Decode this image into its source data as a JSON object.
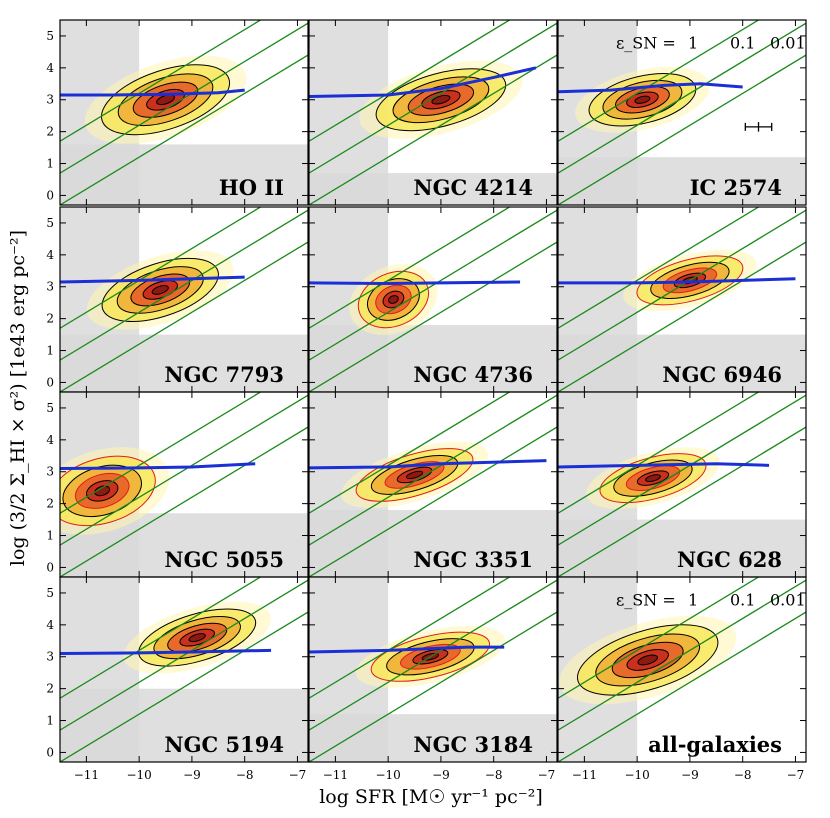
{
  "figure": {
    "ylabel": "log (3/2 Σ_HI × σ²) [1e43 erg pc⁻²]",
    "xlabel": "log SFR [M☉ yr⁻¹ pc⁻²]"
  },
  "chart_data": {
    "type": "contour",
    "layout": {
      "rows": 4,
      "cols": 3
    },
    "xlim": [
      -11.5,
      -6.8
    ],
    "ylim": [
      -0.3,
      5.5
    ],
    "xticks": [
      -11,
      -10,
      -9,
      -8,
      -7
    ],
    "yticks": [
      0,
      1,
      2,
      3,
      4,
      5
    ],
    "xtick_labels": [
      "−11",
      "−10",
      "−9",
      "−8",
      "−7"
    ],
    "ytick_labels": [
      "0",
      "1",
      "2",
      "3",
      "4",
      "5"
    ],
    "diagonal_offsets": [
      11.2,
      12.2,
      13.2
    ],
    "efficiency_label": "ε_SN =",
    "efficiency_values": [
      "1",
      "0.1",
      "0.01"
    ],
    "colors": {
      "threshold_line": "#1a2fd6",
      "efficiency_lines": "#1a8a1a",
      "shade": "#d9d9d9"
    },
    "panels": [
      {
        "name": "HO II",
        "shade_x": -10.0,
        "shade_y": 1.6,
        "threshold": [
          [
            -11.5,
            3.15
          ],
          [
            -10.5,
            3.15
          ],
          [
            -9.5,
            3.17
          ],
          [
            -8.5,
            3.22
          ],
          [
            -8.0,
            3.3
          ]
        ],
        "blob": {
          "cx": -9.5,
          "cy": 3.0,
          "sx": 1.1,
          "sy": 0.5,
          "slope": 0.55
        },
        "red": false
      },
      {
        "name": "NGC 4214",
        "shade_x": -10.0,
        "shade_y": 0.7,
        "threshold": [
          [
            -11.5,
            3.1
          ],
          [
            -10.0,
            3.15
          ],
          [
            -9.0,
            3.35
          ],
          [
            -8.0,
            3.7
          ],
          [
            -7.2,
            4.0
          ]
        ],
        "blob": {
          "cx": -9.0,
          "cy": 3.0,
          "sx": 1.1,
          "sy": 0.45,
          "slope": 0.45
        },
        "red": false
      },
      {
        "name": "IC 2574",
        "shade_x": -10.0,
        "shade_y": 1.2,
        "threshold": [
          [
            -11.5,
            3.25
          ],
          [
            -10.5,
            3.3
          ],
          [
            -9.5,
            3.45
          ],
          [
            -8.8,
            3.5
          ],
          [
            -8.0,
            3.4
          ]
        ],
        "blob": {
          "cx": -9.9,
          "cy": 3.0,
          "sx": 0.9,
          "sy": 0.4,
          "slope": 0.4
        },
        "red": false,
        "show_epsilon": true,
        "errorbar": {
          "x": -7.7,
          "y": 2.15,
          "dx": 0.25,
          "dy": 0.15
        }
      },
      {
        "name": "NGC 7793",
        "shade_x": -10.0,
        "shade_y": 1.5,
        "threshold": [
          [
            -11.5,
            3.15
          ],
          [
            -10.0,
            3.2
          ],
          [
            -9.0,
            3.25
          ],
          [
            -8.0,
            3.3
          ]
        ],
        "blob": {
          "cx": -9.6,
          "cy": 2.9,
          "sx": 1.0,
          "sy": 0.45,
          "slope": 0.55
        },
        "red": false
      },
      {
        "name": "NGC 4736",
        "shade_x": -10.0,
        "shade_y": 1.8,
        "threshold": [
          [
            -11.5,
            3.12
          ],
          [
            -10.0,
            3.1
          ],
          [
            -9.0,
            3.12
          ],
          [
            -7.5,
            3.15
          ]
        ],
        "blob": {
          "cx": -9.9,
          "cy": 2.6,
          "sx": 0.6,
          "sy": 0.45,
          "slope": 0.7
        },
        "red": true
      },
      {
        "name": "NGC 6946",
        "shade_x": -10.0,
        "shade_y": 1.5,
        "threshold": [
          [
            -11.5,
            3.12
          ],
          [
            -10.0,
            3.12
          ],
          [
            -9.0,
            3.15
          ],
          [
            -7.0,
            3.25
          ]
        ],
        "blob": {
          "cx": -9.0,
          "cy": 3.2,
          "sx": 0.9,
          "sy": 0.35,
          "slope": 0.45
        },
        "red": true
      },
      {
        "name": "NGC 5055",
        "shade_x": -10.0,
        "shade_y": 1.7,
        "threshold": [
          [
            -11.5,
            3.1
          ],
          [
            -10.0,
            3.12
          ],
          [
            -9.0,
            3.15
          ],
          [
            -7.8,
            3.25
          ]
        ],
        "blob": {
          "cx": -10.7,
          "cy": 2.4,
          "sx": 0.9,
          "sy": 0.55,
          "slope": 0.5
        },
        "red": true
      },
      {
        "name": "NGC 3351",
        "shade_x": -10.0,
        "shade_y": 1.8,
        "threshold": [
          [
            -11.5,
            3.12
          ],
          [
            -10.0,
            3.15
          ],
          [
            -9.0,
            3.25
          ],
          [
            -7.0,
            3.35
          ]
        ],
        "blob": {
          "cx": -9.5,
          "cy": 2.9,
          "sx": 1.0,
          "sy": 0.35,
          "slope": 0.5
        },
        "red": true
      },
      {
        "name": "NGC 628",
        "shade_x": -10.0,
        "shade_y": 1.5,
        "threshold": [
          [
            -11.5,
            3.15
          ],
          [
            -10.0,
            3.2
          ],
          [
            -8.5,
            3.25
          ],
          [
            -7.5,
            3.2
          ]
        ],
        "blob": {
          "cx": -9.7,
          "cy": 2.8,
          "sx": 0.9,
          "sy": 0.35,
          "slope": 0.45
        },
        "red": true
      },
      {
        "name": "NGC 5194",
        "shade_x": -10.0,
        "shade_y": 2.0,
        "threshold": [
          [
            -11.5,
            3.1
          ],
          [
            -10.0,
            3.12
          ],
          [
            -9.0,
            3.15
          ],
          [
            -7.5,
            3.2
          ]
        ],
        "blob": {
          "cx": -8.9,
          "cy": 3.6,
          "sx": 1.0,
          "sy": 0.4,
          "slope": 0.5
        },
        "red": false
      },
      {
        "name": "NGC 3184",
        "shade_x": -10.0,
        "shade_y": 1.2,
        "threshold": [
          [
            -11.5,
            3.15
          ],
          [
            -10.0,
            3.2
          ],
          [
            -8.5,
            3.3
          ],
          [
            -7.8,
            3.3
          ]
        ],
        "blob": {
          "cx": -9.2,
          "cy": 3.0,
          "sx": 1.0,
          "sy": 0.35,
          "slope": 0.4
        },
        "red": true
      },
      {
        "name": "all-galaxies",
        "shade_x": -10.0,
        "shade_y": null,
        "threshold": null,
        "blob": {
          "cx": -9.8,
          "cy": 2.9,
          "sx": 1.2,
          "sy": 0.5,
          "slope": 0.5
        },
        "red": false,
        "show_epsilon": true,
        "shade_full_left": true
      }
    ]
  }
}
